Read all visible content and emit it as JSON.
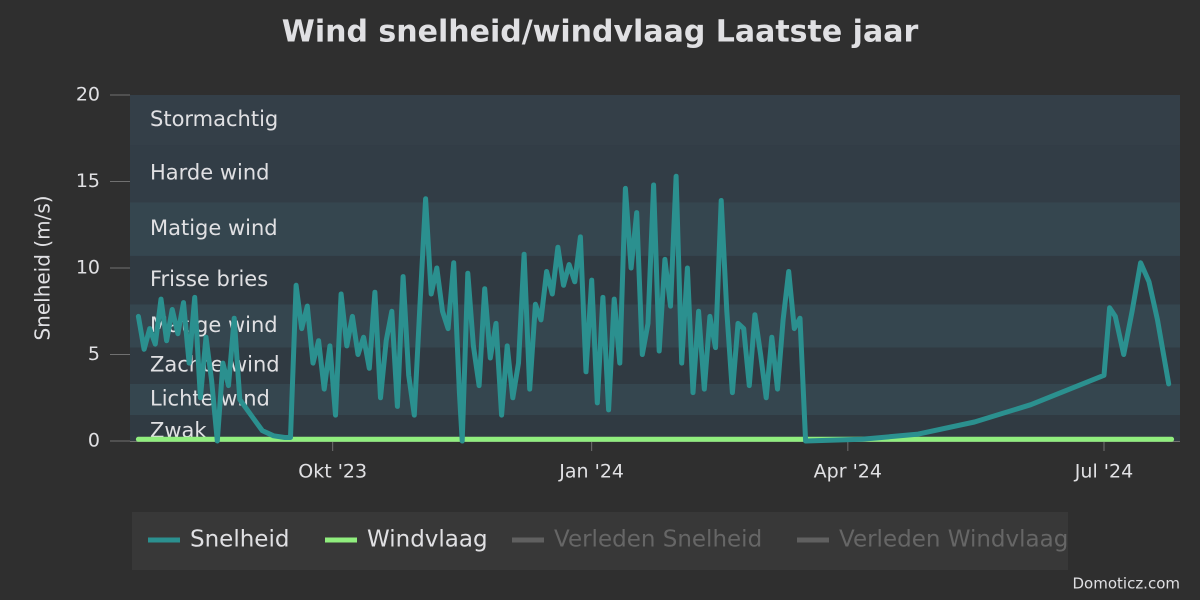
{
  "chart_data": {
    "type": "line",
    "title": "Wind snelheid/windvlaag Laatste jaar",
    "y_label": "Snelheid (m/s)",
    "xlim": [
      0,
      373
    ],
    "xticks": [
      {
        "value": 72,
        "label": "Okt '23"
      },
      {
        "value": 164,
        "label": "Jan '24"
      },
      {
        "value": 255,
        "label": "Apr '24"
      },
      {
        "value": 346,
        "label": "Jul '24"
      }
    ],
    "ylim": [
      0,
      20
    ],
    "yticks": [
      0,
      5,
      10,
      15,
      20
    ],
    "bands": [
      {
        "from": 0.3,
        "to": 1.5,
        "label": "Zwak",
        "color": "#303a42"
      },
      {
        "from": 1.5,
        "to": 3.3,
        "label": "Lichte wind",
        "color": "#35464f"
      },
      {
        "from": 3.3,
        "to": 5.4,
        "label": "Zachte wind",
        "color": "#303a42"
      },
      {
        "from": 5.4,
        "to": 7.9,
        "label": "Matige wind",
        "color": "#35464f"
      },
      {
        "from": 7.9,
        "to": 10.7,
        "label": "Frisse bries",
        "color": "#303a42"
      },
      {
        "from": 10.7,
        "to": 13.8,
        "label": "Matige wind",
        "color": "#35464f"
      },
      {
        "from": 13.8,
        "to": 17.1,
        "label": "Harde wind",
        "color": "#323d46"
      },
      {
        "from": 17.1,
        "to": 20,
        "label": "Stormachtig",
        "color": "#343f48"
      }
    ],
    "series": [
      {
        "name": "Snelheid",
        "color": "#2b908f",
        "x": [
          3,
          5,
          7,
          9,
          11,
          13,
          15,
          17,
          19,
          21,
          23,
          25,
          27,
          29,
          31,
          33,
          35,
          37,
          39,
          43,
          47,
          51,
          55,
          57,
          59,
          61,
          63,
          65,
          67,
          69,
          71,
          73,
          75,
          77,
          79,
          81,
          83,
          85,
          87,
          89,
          91,
          93,
          95,
          97,
          99,
          101,
          103,
          105,
          107,
          109,
          111,
          113,
          115,
          117,
          118,
          120,
          122,
          124,
          126,
          128,
          130,
          132,
          134,
          136,
          138,
          140,
          142,
          144,
          146,
          148,
          150,
          152,
          154,
          156,
          158,
          160,
          162,
          164,
          166,
          168,
          170,
          172,
          174,
          176,
          178,
          180,
          182,
          184,
          186,
          188,
          190,
          192,
          194,
          196,
          198,
          200,
          202,
          204,
          206,
          208,
          210,
          212,
          214,
          216,
          218,
          220,
          222,
          224,
          226,
          228,
          230,
          232,
          234,
          236,
          238,
          240,
          260,
          280,
          300,
          320,
          346,
          348,
          350,
          353,
          356,
          359,
          362,
          365,
          369
        ],
        "values": [
          7.2,
          5.3,
          6.5,
          5.6,
          8.2,
          5.8,
          7.6,
          6.2,
          8.0,
          4.5,
          8.3,
          2.5,
          6.0,
          3.5,
          0,
          4.5,
          3.2,
          7.1,
          2.4,
          1.5,
          0.6,
          0.3,
          0.2,
          0.2,
          9.0,
          6.5,
          7.8,
          4.5,
          5.8,
          3.0,
          5.5,
          1.5,
          8.5,
          5.5,
          7.2,
          5.0,
          6.0,
          4.2,
          8.6,
          2.5,
          5.8,
          7.5,
          2.0,
          9.5,
          3.8,
          1.5,
          7.8,
          14.0,
          8.5,
          10.0,
          7.5,
          6.5,
          10.3,
          2.8,
          0,
          9.7,
          5.5,
          3.2,
          8.8,
          4.8,
          6.8,
          1.5,
          5.5,
          2.5,
          4.5,
          10.8,
          3.0,
          7.9,
          7.0,
          9.8,
          8.5,
          11.2,
          9.0,
          10.2,
          9.2,
          11.8,
          4.0,
          9.3,
          2.2,
          8.3,
          1.8,
          8.2,
          4.5,
          14.6,
          10.0,
          13.2,
          5.0,
          6.8,
          14.8,
          5.2,
          10.5,
          7.8,
          15.3,
          4.5,
          10.0,
          2.8,
          7.5,
          3.0,
          7.2,
          5.4,
          13.9,
          7.5,
          2.8,
          6.8,
          6.5,
          3.2,
          7.3,
          5.0,
          2.5,
          6.0,
          3.0,
          7.0,
          9.8,
          6.5,
          7.1,
          0,
          0.1,
          0.4,
          1.1,
          2.1,
          3.8,
          7.7,
          7.2,
          5.0,
          7.5,
          10.3,
          9.2,
          7.0,
          3.3
        ]
      },
      {
        "name": "Windvlaag",
        "color": "#90ee7e",
        "x": [
          3,
          370
        ],
        "values": [
          0.1,
          0.1
        ]
      }
    ],
    "hidden_series": [
      {
        "name": "Verleden Snelheid",
        "color": "#606060"
      },
      {
        "name": "Verleden Windvlaag",
        "color": "#606060"
      }
    ],
    "credits": "Domoticz.com"
  }
}
